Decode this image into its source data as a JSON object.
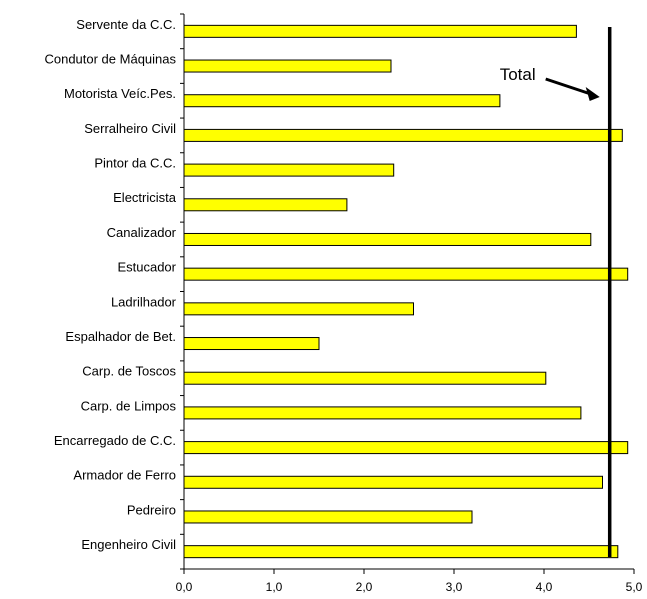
{
  "chart_data": {
    "type": "bar",
    "orientation": "horizontal",
    "categories": [
      "Servente da C.C.",
      "Condutor de Máquinas",
      "Motorista Veíc.Pes.",
      "Serralheiro Civil",
      "Pintor da C.C.",
      "Electricista",
      "Canalizador",
      "Estucador",
      "Ladrilhador",
      "Espalhador de Bet.",
      "Carp. de Toscos",
      "Carp. de Limpos",
      "Encarregado de C.C.",
      "Armador de Ferro",
      "Pedreiro",
      "Engenheiro Civil"
    ],
    "values": [
      4.36,
      2.3,
      3.51,
      4.87,
      2.33,
      1.81,
      4.52,
      4.93,
      2.55,
      1.5,
      4.02,
      4.41,
      4.93,
      4.65,
      3.2,
      4.82
    ],
    "xlim": [
      0,
      5
    ],
    "x_ticks": [
      "0,0",
      "1,0",
      "2,0",
      "3,0",
      "4,0",
      "5,0"
    ],
    "bar_color": "#ffff00",
    "bar_edge_color": "#000000",
    "reference_line": {
      "label": "Total",
      "value": 4.73,
      "color": "#000000"
    },
    "title": "",
    "xlabel": "",
    "ylabel": "",
    "grid": false,
    "legend": "none"
  }
}
